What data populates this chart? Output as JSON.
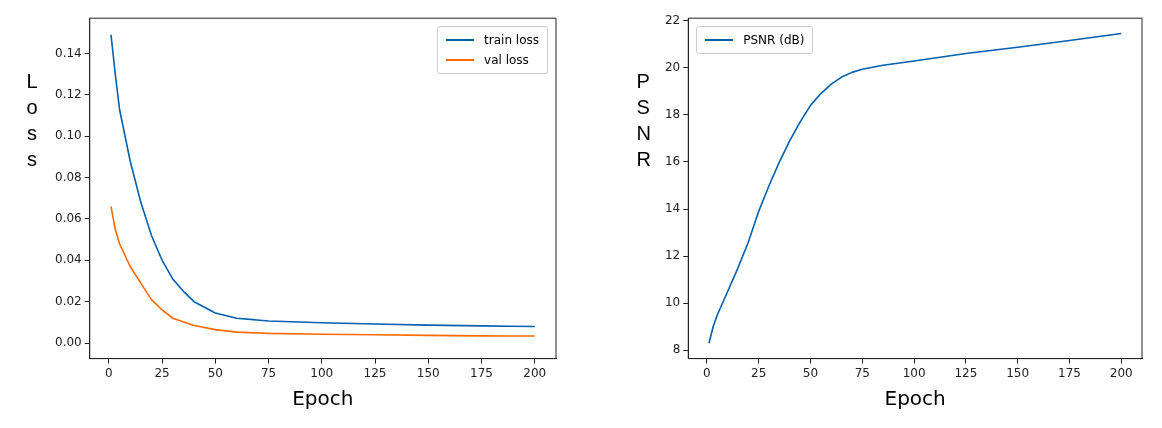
{
  "chart_data": [
    {
      "type": "line",
      "xlabel": "Epoch",
      "ylabel": "Loss",
      "xlim": [
        -9,
        210
      ],
      "ylim": [
        -0.0075,
        0.157
      ],
      "xticks": [
        0,
        25,
        50,
        75,
        100,
        125,
        150,
        175,
        200
      ],
      "yticks": [
        {
          "value": 0,
          "label": "0.00"
        },
        {
          "value": 0.02,
          "label": "0.02"
        },
        {
          "value": 0.04,
          "label": "0.04"
        },
        {
          "value": 0.06,
          "label": "0.06"
        },
        {
          "value": 0.08,
          "label": "0.08"
        },
        {
          "value": 0.1,
          "label": "0.10"
        },
        {
          "value": 0.12,
          "label": "0.12"
        },
        {
          "value": 0.14,
          "label": "0.14"
        }
      ],
      "grid": false,
      "legend": "top right",
      "marker": "none",
      "line_style": "solid",
      "series": [
        {
          "name": "train loss",
          "color": "#0060b0",
          "x": [
            1,
            3,
            5,
            10,
            15,
            20,
            25,
            30,
            35,
            40,
            50,
            60,
            75,
            100,
            125,
            150,
            175,
            200
          ],
          "values": [
            0.149,
            0.13,
            0.113,
            0.088,
            0.068,
            0.052,
            0.04,
            0.031,
            0.025,
            0.02,
            0.0145,
            0.012,
            0.0107,
            0.0098,
            0.0092,
            0.0087,
            0.0083,
            0.008
          ]
        },
        {
          "name": "val loss",
          "color": "#ff6a00",
          "x": [
            1,
            3,
            5,
            10,
            15,
            20,
            25,
            30,
            40,
            50,
            60,
            75,
            100,
            125,
            150,
            175,
            200
          ],
          "values": [
            0.066,
            0.055,
            0.048,
            0.037,
            0.029,
            0.021,
            0.016,
            0.012,
            0.0085,
            0.0065,
            0.0053,
            0.0047,
            0.0043,
            0.004,
            0.0037,
            0.0035,
            0.0034
          ]
        }
      ]
    },
    {
      "type": "line",
      "xlabel": "Epoch",
      "ylabel": "PSNR",
      "xlim": [
        -9,
        210
      ],
      "ylim": [
        7.65,
        22.1
      ],
      "xticks": [
        0,
        25,
        50,
        75,
        100,
        125,
        150,
        175,
        200
      ],
      "yticks": [
        8,
        10,
        12,
        14,
        16,
        18,
        20,
        22
      ],
      "grid": false,
      "legend": "top left",
      "marker": "none",
      "line_style": "solid",
      "series": [
        {
          "name": "PSNR (dB)",
          "color": "#0060b0",
          "x": [
            1,
            3,
            5,
            10,
            15,
            20,
            25,
            30,
            35,
            40,
            45,
            50,
            55,
            60,
            65,
            70,
            75,
            85,
            100,
            125,
            150,
            175,
            200
          ],
          "values": [
            8.3,
            9.0,
            9.5,
            10.5,
            11.5,
            12.6,
            13.9,
            15.0,
            16.0,
            16.9,
            17.7,
            18.4,
            18.9,
            19.3,
            19.6,
            19.8,
            19.93,
            20.1,
            20.28,
            20.6,
            20.87,
            21.15,
            21.45
          ]
        }
      ]
    }
  ]
}
